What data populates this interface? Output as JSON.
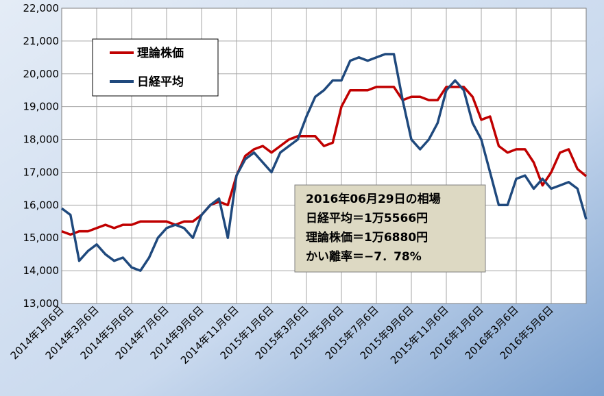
{
  "chart_data": {
    "type": "line",
    "categories": [
      "2014年1月6日",
      null,
      null,
      null,
      "2014年3月6日",
      null,
      null,
      null,
      "2014年5月6日",
      null,
      null,
      null,
      "2014年7月6日",
      null,
      null,
      null,
      "2014年9月6日",
      null,
      null,
      null,
      "2014年11月6日",
      null,
      null,
      null,
      "2015年1月6日",
      null,
      null,
      null,
      "2015年3月6日",
      null,
      null,
      null,
      "2015年5月6日",
      null,
      null,
      null,
      "2015年7月6日",
      null,
      null,
      null,
      "2015年9月6日",
      null,
      null,
      null,
      "2015年11月6日",
      null,
      null,
      null,
      "2016年1月6日",
      null,
      null,
      null,
      "2016年3月6日",
      null,
      null,
      null,
      "2016年5月6日",
      null,
      null,
      null,
      null
    ],
    "series": [
      {
        "name": "理論株価",
        "color": "#c00000",
        "values": [
          15200,
          15100,
          15200,
          15200,
          15300,
          15400,
          15300,
          15400,
          15400,
          15500,
          15500,
          15500,
          15500,
          15400,
          15500,
          15500,
          15700,
          16000,
          16100,
          16000,
          16900,
          17500,
          17700,
          17800,
          17600,
          17800,
          18000,
          18100,
          18100,
          18100,
          17800,
          17900,
          19000,
          19500,
          19500,
          19500,
          19600,
          19600,
          19600,
          19200,
          19300,
          19300,
          19200,
          19200,
          19600,
          19600,
          19600,
          19300,
          18600,
          18700,
          17800,
          17600,
          17700,
          17700,
          17300,
          16600,
          17000,
          17600,
          17700,
          17100,
          16880
        ]
      },
      {
        "name": "日経平均",
        "color": "#1f497d",
        "values": [
          15900,
          15700,
          14300,
          14600,
          14800,
          14500,
          14300,
          14400,
          14100,
          14000,
          14400,
          15000,
          15300,
          15400,
          15300,
          15000,
          15700,
          16000,
          16200,
          15000,
          16900,
          17400,
          17600,
          17300,
          17000,
          17600,
          17800,
          18000,
          18700,
          19300,
          19500,
          19800,
          19800,
          20400,
          20500,
          20400,
          20500,
          20600,
          20600,
          19200,
          18000,
          17700,
          18000,
          18500,
          19500,
          19800,
          19500,
          18500,
          18000,
          17000,
          16000,
          16000,
          16800,
          16900,
          16500,
          16800,
          16500,
          16600,
          16700,
          16500,
          15566
        ]
      }
    ],
    "ylim": [
      13000,
      22000
    ],
    "yticks": [
      {
        "value": 13000,
        "label": "13,000"
      },
      {
        "value": 14000,
        "label": "14,000"
      },
      {
        "value": 15000,
        "label": "15,000"
      },
      {
        "value": 16000,
        "label": "16,000"
      },
      {
        "value": 17000,
        "label": "17,000"
      },
      {
        "value": 18000,
        "label": "18,000"
      },
      {
        "value": 19000,
        "label": "19,000"
      },
      {
        "value": 20000,
        "label": "20,000"
      },
      {
        "value": 21000,
        "label": "21,000"
      },
      {
        "value": 22000,
        "label": "22,000"
      }
    ],
    "grid": true,
    "legend": "upper left",
    "annotation": [
      "2016年06月29日の相場",
      "日経平均＝1万5566円",
      "理論株価＝1万6880円",
      "かい離率＝−7．78%"
    ]
  }
}
